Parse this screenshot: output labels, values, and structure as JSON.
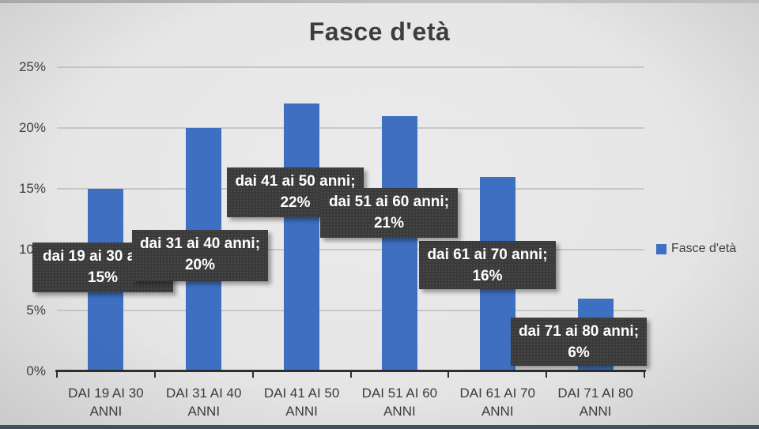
{
  "title": "Fasce d'età",
  "legend": {
    "label": "Fasce d'età"
  },
  "colors": {
    "bar": "#3e6fc1",
    "callout_bg": "#3a3a3a",
    "callout_text": "#ffffff",
    "axis_line": "#2f2f2f",
    "gridline": "#c7c7c7",
    "bottom_strip": "#45505e"
  },
  "chart_data": {
    "type": "bar",
    "title": "Fasce d'età",
    "series_name": "Fasce d'età",
    "categories": [
      "DAI 19 AI 30 ANNI",
      "DAI 31 AI 40 ANNI",
      "DAI 41 AI 50 ANNI",
      "DAI 51 AI 60 ANNI",
      "DAI 61 AI 70 ANNI",
      "DAI 71 AI 80 ANNI"
    ],
    "values": [
      15,
      20,
      22,
      21,
      16,
      6
    ],
    "unit": "%",
    "ylim": [
      0,
      25
    ],
    "yticks": [
      {
        "value": 0,
        "label": "0%"
      },
      {
        "value": 5,
        "label": "5%"
      },
      {
        "value": 10,
        "label": "10%"
      },
      {
        "value": 15,
        "label": "15%"
      },
      {
        "value": 20,
        "label": "20%"
      },
      {
        "value": 25,
        "label": "25%"
      }
    ],
    "grid": true,
    "legend_position": "right",
    "data_labels": [
      {
        "line1": "dai 19 ai 30 anni;",
        "line2": "15%"
      },
      {
        "line1": "dai 31 ai 40 anni;",
        "line2": "20%"
      },
      {
        "line1": "dai 41 ai 50 anni;",
        "line2": "22%"
      },
      {
        "line1": "dai 51 ai 60 anni;",
        "line2": "21%"
      },
      {
        "line1": "dai 61 ai 70 anni;",
        "line2": "16%"
      },
      {
        "line1": "dai 71 ai 80 anni;",
        "line2": "6%"
      }
    ]
  }
}
